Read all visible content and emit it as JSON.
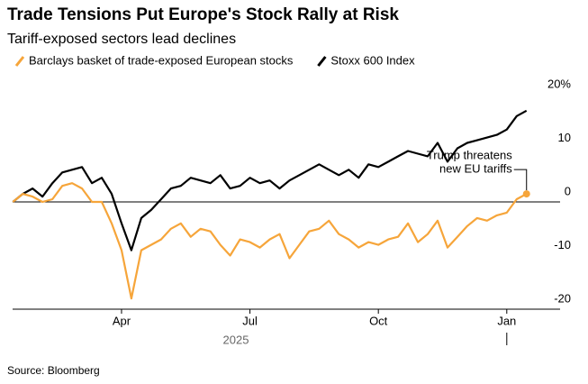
{
  "chart_data": {
    "type": "line",
    "title": "Trade Tensions Put Europe's Stock Rally at Risk",
    "subtitle": "Tariff-exposed sectors lead declines",
    "xlabel": "2025",
    "source": "Source: Bloomberg",
    "annotation": [
      "Trump threatens",
      "new EU tariffs"
    ],
    "categories": [
      null,
      null,
      null,
      null,
      null,
      null,
      null,
      null,
      null,
      null,
      null,
      "Apr",
      null,
      null,
      null,
      null,
      null,
      null,
      null,
      null,
      null,
      null,
      null,
      null,
      "Jul",
      null,
      null,
      null,
      null,
      null,
      null,
      null,
      null,
      null,
      null,
      null,
      null,
      "Oct",
      null,
      null,
      null,
      null,
      null,
      null,
      null,
      null,
      null,
      null,
      null,
      null,
      "Jan",
      null,
      null
    ],
    "series": [
      {
        "name": "Barclays basket of trade-exposed European stocks",
        "color": "#f6a53a",
        "values": [
          0,
          1.5,
          1,
          0,
          0.5,
          3,
          3.5,
          2.5,
          0,
          0,
          -4,
          -9,
          -18,
          -9,
          -8,
          -7,
          -5,
          -4,
          -6.5,
          -5,
          -5.5,
          -8,
          -10,
          -7,
          -7.5,
          -8.5,
          -7,
          -6,
          -10.5,
          -8,
          -5.5,
          -5,
          -3.5,
          -6,
          -7,
          -8.5,
          -7.5,
          -8,
          -7,
          -6.5,
          -4,
          -7.5,
          -6,
          -3.5,
          -8.5,
          -6.5,
          -4.5,
          -3,
          -3.5,
          -2.5,
          -2,
          0.5,
          1.5
        ]
      },
      {
        "name": "Stoxx 600 Index",
        "color": "#000000",
        "values": [
          0,
          1.5,
          2.5,
          1,
          3.5,
          5.5,
          6,
          6.5,
          3.5,
          4.5,
          1.5,
          -4,
          -9,
          -3,
          -1.5,
          0.5,
          2.5,
          3,
          4.5,
          4,
          3.5,
          5,
          2.5,
          3,
          4.5,
          3.5,
          4,
          2.5,
          4,
          5,
          6,
          7,
          6,
          5,
          6,
          4.5,
          7,
          6.5,
          7.5,
          8.5,
          9.5,
          9,
          8.5,
          11,
          7.5,
          10,
          11,
          11.5,
          12,
          12.5,
          13.5,
          16,
          17
        ]
      }
    ],
    "ylim": [
      -20,
      20
    ],
    "yticks": [
      {
        "value": 20,
        "label": "20%"
      },
      10,
      0,
      -10,
      -20
    ],
    "zero_line": true
  }
}
